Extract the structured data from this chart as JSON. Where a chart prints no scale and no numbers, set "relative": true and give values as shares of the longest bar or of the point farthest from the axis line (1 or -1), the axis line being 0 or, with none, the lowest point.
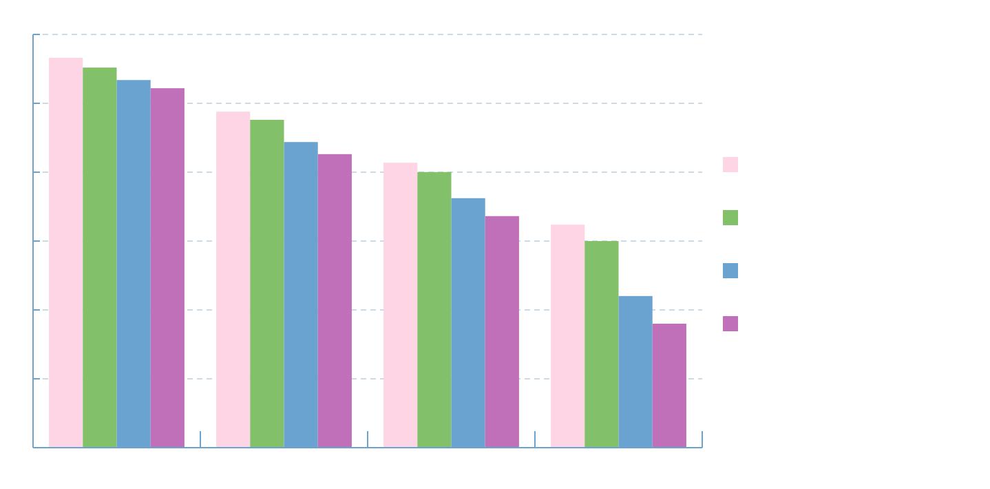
{
  "chart_data": {
    "type": "bar",
    "relative": true,
    "categories": [
      null,
      null,
      null,
      null
    ],
    "series": [
      {
        "color": "#fdd5e5",
        "values": [
          1,
          0.862,
          0.731,
          0.572
        ]
      },
      {
        "color": "#82c06a",
        "values": [
          0.975,
          0.841,
          0.707,
          0.53
        ]
      },
      {
        "color": "#6aa3cf",
        "values": [
          0.943,
          0.784,
          0.64,
          0.389
        ]
      },
      {
        "color": "#c070b8",
        "values": [
          0.922,
          0.753,
          0.594,
          0.318
        ]
      }
    ],
    "grid": "y"
  }
}
